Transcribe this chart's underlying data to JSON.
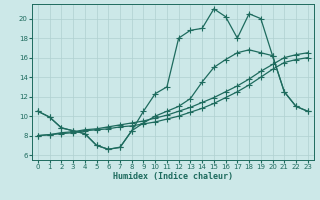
{
  "title": "",
  "xlabel": "Humidex (Indice chaleur)",
  "bg_color": "#cce8e8",
  "line_color": "#1e6b5e",
  "grid_color": "#b0d0d0",
  "xlim": [
    -0.5,
    23.5
  ],
  "ylim": [
    5.5,
    21.5
  ],
  "xticks": [
    0,
    1,
    2,
    3,
    4,
    5,
    6,
    7,
    8,
    9,
    10,
    11,
    12,
    13,
    14,
    15,
    16,
    17,
    18,
    19,
    20,
    21,
    22,
    23
  ],
  "yticks": [
    6,
    8,
    10,
    12,
    14,
    16,
    18,
    20
  ],
  "line_jagged_x": [
    0,
    1,
    2,
    3,
    4,
    5,
    6,
    7,
    8,
    9,
    10,
    11,
    12,
    13,
    14,
    15,
    16,
    17,
    18,
    19,
    20,
    21,
    22,
    23
  ],
  "line_jagged_y": [
    10.5,
    9.9,
    8.8,
    8.5,
    8.2,
    7.0,
    6.6,
    6.8,
    8.5,
    10.5,
    12.3,
    13.0,
    18.0,
    18.8,
    19.0,
    21.0,
    20.2,
    18.0,
    20.5,
    20.0,
    16.2,
    12.5,
    11.0,
    10.5
  ],
  "line_u_x": [
    0,
    1,
    2,
    3,
    4,
    5,
    6,
    7,
    8,
    9,
    10,
    11,
    12,
    13,
    14,
    15,
    16,
    17,
    18,
    19,
    20,
    21,
    22,
    23
  ],
  "line_u_y": [
    10.5,
    9.9,
    8.8,
    8.5,
    8.2,
    7.0,
    6.6,
    6.8,
    8.5,
    9.3,
    10.0,
    10.5,
    11.0,
    11.8,
    13.5,
    15.0,
    15.8,
    16.5,
    16.8,
    16.5,
    16.2,
    12.5,
    11.0,
    10.5
  ],
  "line_diag1_x": [
    0,
    1,
    2,
    3,
    4,
    5,
    6,
    7,
    8,
    9,
    10,
    11,
    12,
    13,
    14,
    15,
    16,
    17,
    18,
    19,
    20,
    21,
    22,
    23
  ],
  "line_diag1_y": [
    8.0,
    8.1,
    8.2,
    8.3,
    8.5,
    8.6,
    8.7,
    8.9,
    9.0,
    9.2,
    9.4,
    9.7,
    10.0,
    10.4,
    10.8,
    11.3,
    11.9,
    12.5,
    13.2,
    14.0,
    14.8,
    15.5,
    15.8,
    16.0
  ],
  "line_diag2_x": [
    0,
    1,
    2,
    3,
    4,
    5,
    6,
    7,
    8,
    9,
    10,
    11,
    12,
    13,
    14,
    15,
    16,
    17,
    18,
    19,
    20,
    21,
    22,
    23
  ],
  "line_diag2_y": [
    8.0,
    8.1,
    8.3,
    8.4,
    8.6,
    8.7,
    8.9,
    9.1,
    9.3,
    9.5,
    9.8,
    10.1,
    10.5,
    10.9,
    11.4,
    11.9,
    12.5,
    13.1,
    13.8,
    14.6,
    15.3,
    16.0,
    16.3,
    16.5
  ]
}
